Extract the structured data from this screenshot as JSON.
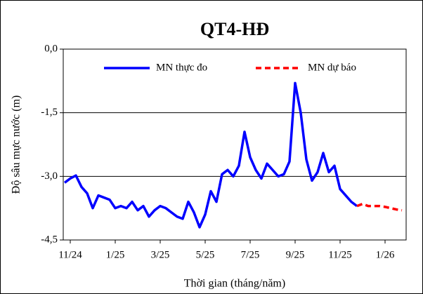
{
  "chart_data": {
    "type": "line",
    "title": "QT4-HĐ",
    "xlabel": "Thời gian (tháng/năm)",
    "ylabel": "Độ sâu mực nước (m)",
    "categories": [
      null,
      "11/24",
      null,
      null,
      null,
      null,
      null,
      null,
      null,
      "1/25",
      null,
      null,
      null,
      null,
      null,
      null,
      null,
      "3/25",
      null,
      null,
      null,
      null,
      null,
      null,
      null,
      "5/25",
      null,
      null,
      null,
      null,
      null,
      null,
      null,
      "7/25",
      null,
      null,
      null,
      null,
      null,
      null,
      null,
      "9/25",
      null,
      null,
      null,
      null,
      null,
      null,
      null,
      "11/25",
      null,
      null,
      null,
      null,
      null,
      null,
      null,
      "1/26",
      null,
      null,
      null
    ],
    "series": [
      {
        "name": "MN thực đo",
        "color": "#0000ff",
        "style": "solid",
        "values": [
          -3.15,
          -3.05,
          -2.98,
          -3.25,
          -3.4,
          -3.75,
          -3.45,
          -3.5,
          -3.55,
          -3.75,
          -3.7,
          -3.75,
          -3.6,
          -3.8,
          -3.7,
          -3.95,
          -3.8,
          -3.7,
          -3.75,
          -3.85,
          -3.95,
          -4.0,
          -3.6,
          -3.85,
          -4.2,
          -3.9,
          -3.35,
          -3.6,
          -2.95,
          -2.85,
          -3.0,
          -2.75,
          -1.95,
          -2.55,
          -2.85,
          -3.05,
          -2.7,
          -2.85,
          -3.0,
          -2.95,
          -2.65,
          -0.8,
          -1.5,
          -2.6,
          -3.1,
          -2.9,
          -2.45,
          -2.9,
          -2.75,
          -3.3,
          -3.45,
          -3.6,
          -3.7,
          null,
          null,
          null,
          null,
          null,
          null,
          null,
          null
        ]
      },
      {
        "name": "MN dự báo",
        "color": "#ff0000",
        "style": "dashed",
        "values": [
          null,
          null,
          null,
          null,
          null,
          null,
          null,
          null,
          null,
          null,
          null,
          null,
          null,
          null,
          null,
          null,
          null,
          null,
          null,
          null,
          null,
          null,
          null,
          null,
          null,
          null,
          null,
          null,
          null,
          null,
          null,
          null,
          null,
          null,
          null,
          null,
          null,
          null,
          null,
          null,
          null,
          null,
          null,
          null,
          null,
          null,
          null,
          null,
          null,
          null,
          null,
          null,
          -3.7,
          -3.65,
          -3.7,
          -3.7,
          -3.7,
          -3.72,
          -3.75,
          -3.78,
          -3.8
        ]
      }
    ],
    "ylim": [
      -4.5,
      0
    ],
    "yticks": [
      {
        "value": 0,
        "label": "0,0"
      },
      {
        "value": -1.5,
        "label": "-1,5"
      },
      {
        "value": -3,
        "label": "-3,0"
      },
      {
        "value": -4.5,
        "label": "-4,5"
      }
    ],
    "grid": true
  }
}
